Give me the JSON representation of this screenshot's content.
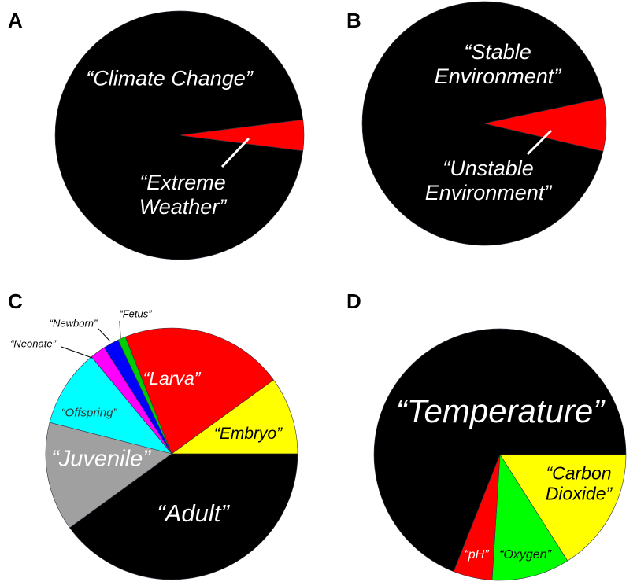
{
  "chart_data": [
    {
      "type": "pie",
      "panel": "A",
      "categories": [
        "“Climate Change”",
        "“Extreme Weather”"
      ],
      "values": [
        96,
        4
      ],
      "colors": [
        "#000000",
        "#ff0000"
      ]
    },
    {
      "type": "pie",
      "panel": "B",
      "categories": [
        "“Stable Environment”",
        "“Unstable Environment”"
      ],
      "values": [
        93,
        7
      ],
      "colors": [
        "#000000",
        "#ff0000"
      ]
    },
    {
      "type": "pie",
      "panel": "C",
      "categories": [
        "“Embryo”",
        "“Larva”",
        "“Fetus”",
        "“Newborn”",
        "“Neonate”",
        "“Offspring”",
        "“Juvenile”",
        "“Adult”"
      ],
      "values": [
        10,
        21,
        1,
        2,
        2,
        10,
        14,
        40
      ],
      "colors": [
        "#ffff00",
        "#ff0000",
        "#00cc00",
        "#0000ff",
        "#ff00ff",
        "#00ffff",
        "#a0a0a0",
        "#000000"
      ]
    },
    {
      "type": "pie",
      "panel": "D",
      "categories": [
        "“Carbon Dioxide”",
        "“Oxygen”",
        "“pH”",
        "“Temperature”"
      ],
      "values": [
        16,
        10,
        5,
        69
      ],
      "colors": [
        "#ffff00",
        "#00ff00",
        "#ff0000",
        "#000000"
      ]
    }
  ]
}
